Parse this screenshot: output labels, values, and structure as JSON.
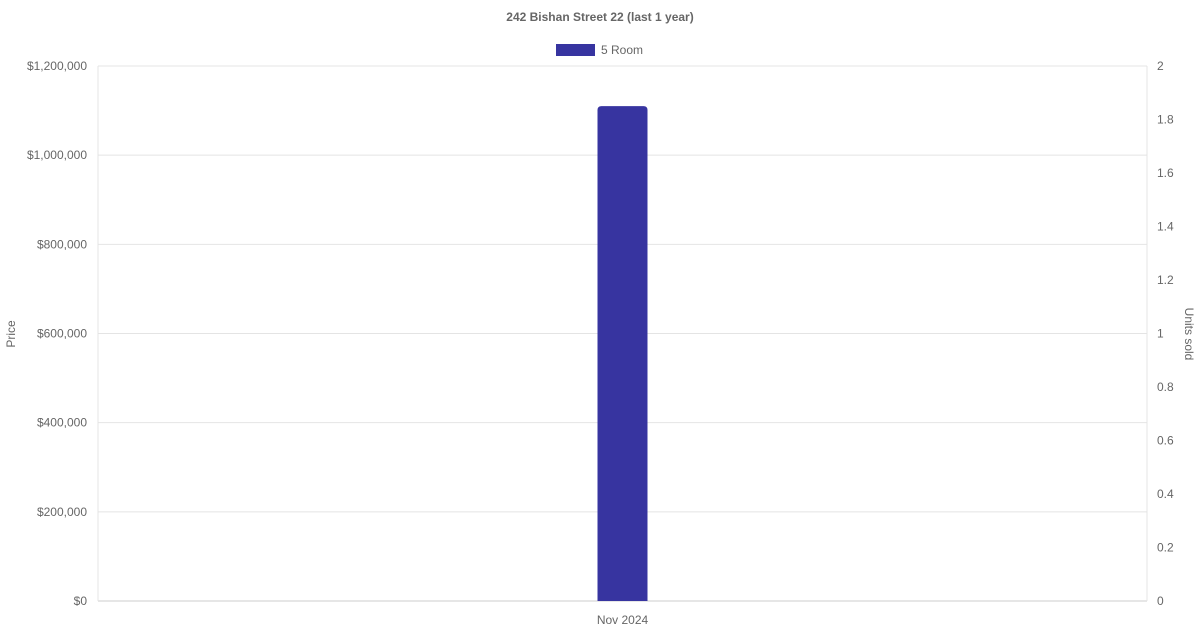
{
  "chart_data": {
    "type": "bar",
    "title": "242 Bishan Street 22 (last 1 year)",
    "categories": [
      "Nov 2024"
    ],
    "series": [
      {
        "name": "5 Room",
        "values": [
          1110000
        ],
        "color": "#3734a0",
        "axis": "left"
      }
    ],
    "ylabel": "Price",
    "ylabel_right": "Units sold",
    "ylim": [
      0,
      1200000
    ],
    "ylim_right": [
      0,
      2
    ],
    "yticks": [
      "$0",
      "$200,000",
      "$400,000",
      "$600,000",
      "$800,000",
      "$1,000,000",
      "$1,200,000"
    ],
    "yticks_right": [
      "0",
      "0.2",
      "0.4",
      "0.6",
      "0.8",
      "1",
      "1.2",
      "1.4",
      "1.6",
      "1.8",
      "2"
    ],
    "grid": true,
    "legend_position": "top"
  }
}
